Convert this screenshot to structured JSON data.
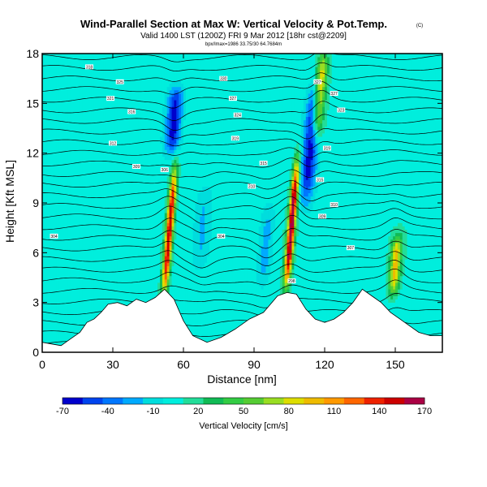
{
  "header": {
    "title": "Wind-Parallel Section at Max W: Vertical Velocity & Pot.Temp.",
    "title_mark": "(C)",
    "subtitle": "Valid 1400 LST (1200Z) FRI 9 Mar 2012 [18hr cst@2209]",
    "subline": "bpx/lmax=1986 33.75/30 64.7684m"
  },
  "chart_data": {
    "type": "heatmap",
    "title": "Wind-Parallel Section at Max W: Vertical Velocity & Pot.Temp.",
    "xlabel": "Distance [nm]",
    "ylabel": "Height [Kft MSL]",
    "xlim": [
      0,
      170
    ],
    "ylim": [
      0,
      18
    ],
    "xticks": [
      0,
      30,
      60,
      90,
      120,
      150
    ],
    "yticks": [
      0,
      3,
      6,
      9,
      12,
      15,
      18
    ],
    "colorbar": {
      "label": "Vertical Velocity [cm/s]",
      "tick_labels": [
        "-70",
        "-40",
        "-10",
        "20",
        "50",
        "80",
        "110",
        "140",
        "170"
      ],
      "tick_values": [
        -70,
        -40,
        -10,
        20,
        50,
        80,
        110,
        140,
        170
      ],
      "colors": [
        "#0000cc",
        "#0044ee",
        "#0077ff",
        "#00aaff",
        "#00dddd",
        "#00eedd",
        "#22dd99",
        "#11bb55",
        "#33cc44",
        "#55cc33",
        "#99dd22",
        "#dddd00",
        "#eebb00",
        "#ff9900",
        "#ff6600",
        "#ee2200",
        "#cc0000",
        "#aa0044"
      ]
    },
    "background_value": 5,
    "features": [
      {
        "name": "updraft-54",
        "x": 54,
        "ymin": 3.5,
        "ymax": 11,
        "w": 150
      },
      {
        "name": "updraft-106",
        "x": 106,
        "ymin": 4,
        "ymax": 11.5,
        "w": 170
      },
      {
        "name": "updraft-118",
        "x": 118,
        "ymin": 13,
        "ymax": 18,
        "w": 90
      },
      {
        "name": "updraft-150",
        "x": 150,
        "ymin": 3.5,
        "ymax": 7,
        "w": 90
      },
      {
        "name": "downdraft-56",
        "x": 56,
        "ymin": 12,
        "ymax": 16,
        "w": -70
      },
      {
        "name": "downdraft-114",
        "x": 114,
        "ymin": 9,
        "ymax": 16,
        "w": -70
      },
      {
        "name": "downdraft-68",
        "x": 68,
        "ymin": 5,
        "ymax": 10,
        "w": -20
      },
      {
        "name": "downdraft-95",
        "x": 95,
        "ymin": 4,
        "ymax": 9,
        "w": -30
      }
    ],
    "terrain": [
      [
        0,
        0.6
      ],
      [
        4,
        0.5
      ],
      [
        8,
        0.4
      ],
      [
        12,
        0.8
      ],
      [
        16,
        1.2
      ],
      [
        19,
        1.8
      ],
      [
        22,
        2.0
      ],
      [
        25,
        2.4
      ],
      [
        28,
        2.9
      ],
      [
        32,
        3.0
      ],
      [
        36,
        2.8
      ],
      [
        40,
        3.2
      ],
      [
        44,
        3.0
      ],
      [
        48,
        3.3
      ],
      [
        52,
        3.8
      ],
      [
        56,
        3.2
      ],
      [
        60,
        1.9
      ],
      [
        64,
        1.0
      ],
      [
        70,
        0.6
      ],
      [
        76,
        0.9
      ],
      [
        82,
        1.4
      ],
      [
        88,
        2.0
      ],
      [
        94,
        2.4
      ],
      [
        100,
        3.4
      ],
      [
        104,
        3.6
      ],
      [
        108,
        3.5
      ],
      [
        112,
        2.6
      ],
      [
        116,
        2.0
      ],
      [
        120,
        1.8
      ],
      [
        124,
        2.0
      ],
      [
        128,
        2.4
      ],
      [
        132,
        3.0
      ],
      [
        136,
        3.8
      ],
      [
        140,
        3.4
      ],
      [
        144,
        3.0
      ],
      [
        148,
        2.4
      ],
      [
        152,
        2.0
      ],
      [
        156,
        1.6
      ],
      [
        160,
        1.2
      ],
      [
        165,
        1.0
      ],
      [
        170,
        1.0
      ]
    ],
    "contour_labels": [
      {
        "x": 20,
        "y": 17.2,
        "text": "318"
      },
      {
        "x": 33,
        "y": 16.3,
        "text": "325"
      },
      {
        "x": 29,
        "y": 15.3,
        "text": "321"
      },
      {
        "x": 38,
        "y": 14.5,
        "text": "316"
      },
      {
        "x": 30,
        "y": 12.6,
        "text": "312"
      },
      {
        "x": 40,
        "y": 11.2,
        "text": "309"
      },
      {
        "x": 52,
        "y": 11.0,
        "text": "306"
      },
      {
        "x": 5,
        "y": 7.0,
        "text": "304"
      },
      {
        "x": 77,
        "y": 16.5,
        "text": "330"
      },
      {
        "x": 81,
        "y": 15.3,
        "text": "327"
      },
      {
        "x": 83,
        "y": 14.3,
        "text": "324"
      },
      {
        "x": 82,
        "y": 12.9,
        "text": "319"
      },
      {
        "x": 94,
        "y": 11.4,
        "text": "315"
      },
      {
        "x": 89,
        "y": 10.0,
        "text": "310"
      },
      {
        "x": 76,
        "y": 7.0,
        "text": "304"
      },
      {
        "x": 106,
        "y": 4.3,
        "text": "298"
      },
      {
        "x": 117,
        "y": 16.3,
        "text": "327"
      },
      {
        "x": 124,
        "y": 15.6,
        "text": "327"
      },
      {
        "x": 127,
        "y": 14.6,
        "text": "323"
      },
      {
        "x": 121,
        "y": 12.3,
        "text": "319"
      },
      {
        "x": 118,
        "y": 10.4,
        "text": "315"
      },
      {
        "x": 124,
        "y": 8.9,
        "text": "310"
      },
      {
        "x": 119,
        "y": 8.2,
        "text": "309"
      },
      {
        "x": 131,
        "y": 6.3,
        "text": "307"
      }
    ]
  }
}
